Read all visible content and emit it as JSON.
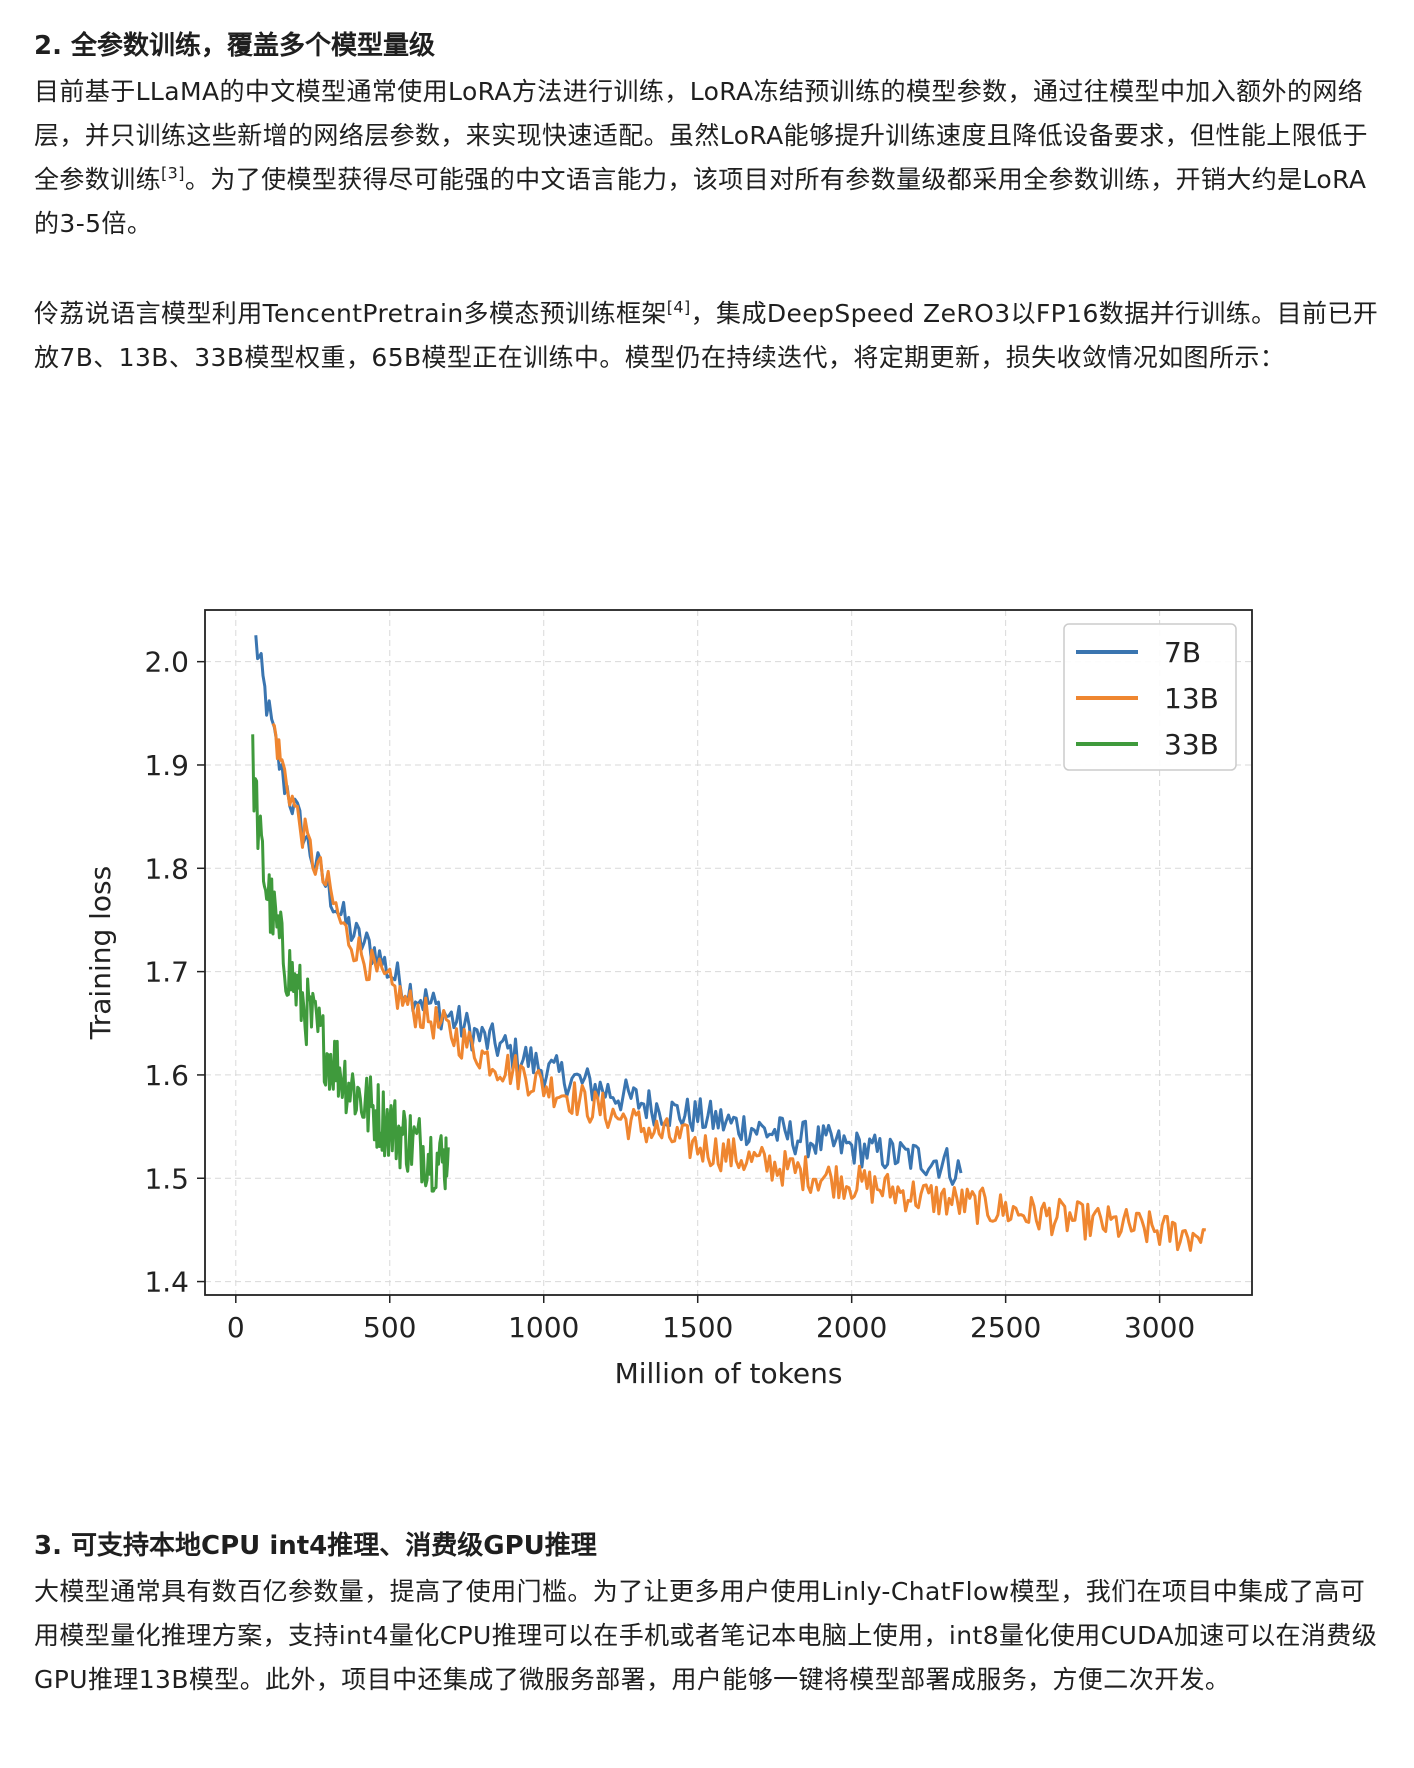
{
  "section2": {
    "heading": "2. 全参数训练，覆盖多个模型量级",
    "para1_text": "目前基于LLaMA的中文模型通常使用LoRA方法进行训练，LoRA冻结预训练的模型参数，通过往模型中加入额外的网络层，并只训练这些新增的网络层参数，来实现快速适配。虽然LoRA能够提升训练速度且降低设备要求，但性能上限低于全参数训练",
    "para1_ref": "[3]",
    "para1_tail": "。为了使模型获得尽可能强的中文语言能力，该项目对所有参数量级都采用全参数训练，开销大约是LoRA的3-5倍。",
    "para2_text": "伶荔说语言模型利用TencentPretrain多模态预训练框架",
    "para2_ref": "[4]",
    "para2_tail": "，集成DeepSpeed ZeRO3以FP16数据并行训练。目前已开放7B、13B、33B模型权重，65B模型正在训练中。模型仍在持续迭代，将定期更新，损失收敛情况如图所示："
  },
  "section3": {
    "heading": "3. 可支持本地CPU int4推理、消费级GPU推理",
    "para_text": "大模型通常具有数百亿参数量，提高了使用门槛。为了让更多用户使用Linly-ChatFlow模型，我们在项目中集成了高可用模型量化推理方案，支持int4量化CPU推理可以在手机或者笔记本电脑上使用，int8量化使用CUDA加速可以在消费级GPU推理13B模型。此外，项目中还集成了微服务部署，用户能够一键将模型部署成服务，方便二次开发。"
  },
  "chart_data": {
    "type": "line",
    "title": "",
    "xlabel": "Million of tokens",
    "ylabel": "Training loss",
    "xlim": [
      -100,
      3300
    ],
    "ylim": [
      1.387,
      2.05
    ],
    "xticks": [
      0,
      500,
      1000,
      1500,
      2000,
      2500,
      3000
    ],
    "yticks": [
      1.4,
      1.5,
      1.6,
      1.7,
      1.8,
      1.9,
      2.0
    ],
    "ytick_labels": [
      "1.4",
      "1.5",
      "1.6",
      "1.7",
      "1.8",
      "1.9",
      "2.0"
    ],
    "grid": true,
    "legend_position": "top-right",
    "series": [
      {
        "name": "7B",
        "color": "#3a75b0",
        "x": [
          65,
          100,
          150,
          200,
          250,
          300,
          350,
          400,
          450,
          500,
          550,
          600,
          650,
          700,
          750,
          800,
          850,
          900,
          950,
          1000,
          1050,
          1100,
          1150,
          1200,
          1250,
          1300,
          1350,
          1400,
          1450,
          1500,
          1550,
          1600,
          1650,
          1700,
          1750,
          1800,
          1850,
          1900,
          1950,
          2000,
          2050,
          2100,
          2150,
          2200,
          2250,
          2300,
          2355
        ],
        "y": [
          2.02,
          1.96,
          1.89,
          1.85,
          1.81,
          1.78,
          1.75,
          1.73,
          1.72,
          1.7,
          1.685,
          1.675,
          1.665,
          1.655,
          1.645,
          1.635,
          1.63,
          1.62,
          1.615,
          1.605,
          1.6,
          1.595,
          1.59,
          1.585,
          1.58,
          1.575,
          1.57,
          1.565,
          1.562,
          1.56,
          1.557,
          1.553,
          1.55,
          1.547,
          1.544,
          1.541,
          1.538,
          1.535,
          1.532,
          1.53,
          1.527,
          1.524,
          1.522,
          1.52,
          1.518,
          1.516,
          1.505
        ]
      },
      {
        "name": "13B",
        "color": "#ef8630",
        "x": [
          120,
          150,
          200,
          250,
          300,
          350,
          400,
          450,
          500,
          550,
          600,
          650,
          700,
          750,
          800,
          850,
          900,
          950,
          1000,
          1050,
          1100,
          1150,
          1200,
          1250,
          1300,
          1350,
          1400,
          1450,
          1500,
          1550,
          1600,
          1650,
          1700,
          1750,
          1800,
          1850,
          1900,
          1950,
          2000,
          2050,
          2100,
          2150,
          2200,
          2250,
          2300,
          2350,
          2400,
          2450,
          2500,
          2550,
          2600,
          2650,
          2700,
          2750,
          2800,
          2850,
          2900,
          2950,
          3000,
          3050,
          3100,
          3150
        ],
        "y": [
          1.94,
          1.9,
          1.85,
          1.81,
          1.78,
          1.74,
          1.72,
          1.7,
          1.685,
          1.67,
          1.66,
          1.65,
          1.64,
          1.63,
          1.62,
          1.61,
          1.605,
          1.598,
          1.59,
          1.585,
          1.578,
          1.57,
          1.565,
          1.558,
          1.552,
          1.546,
          1.541,
          1.536,
          1.531,
          1.527,
          1.523,
          1.519,
          1.515,
          1.512,
          1.508,
          1.505,
          1.502,
          1.499,
          1.496,
          1.493,
          1.49,
          1.487,
          1.484,
          1.481,
          1.479,
          1.476,
          1.474,
          1.471,
          1.469,
          1.467,
          1.465,
          1.463,
          1.461,
          1.459,
          1.457,
          1.455,
          1.453,
          1.451,
          1.449,
          1.447,
          1.445,
          1.45
        ]
      },
      {
        "name": "33B",
        "color": "#3f9a3c",
        "x": [
          55,
          80,
          100,
          125,
          150,
          175,
          200,
          225,
          250,
          275,
          300,
          325,
          350,
          375,
          400,
          425,
          450,
          475,
          500,
          525,
          550,
          575,
          600,
          625,
          650,
          675,
          690
        ],
        "y": [
          1.9,
          1.82,
          1.78,
          1.75,
          1.72,
          1.7,
          1.68,
          1.665,
          1.65,
          1.635,
          1.62,
          1.61,
          1.6,
          1.59,
          1.58,
          1.57,
          1.565,
          1.558,
          1.552,
          1.545,
          1.54,
          1.535,
          1.53,
          1.525,
          1.52,
          1.515,
          1.53
        ]
      }
    ]
  }
}
